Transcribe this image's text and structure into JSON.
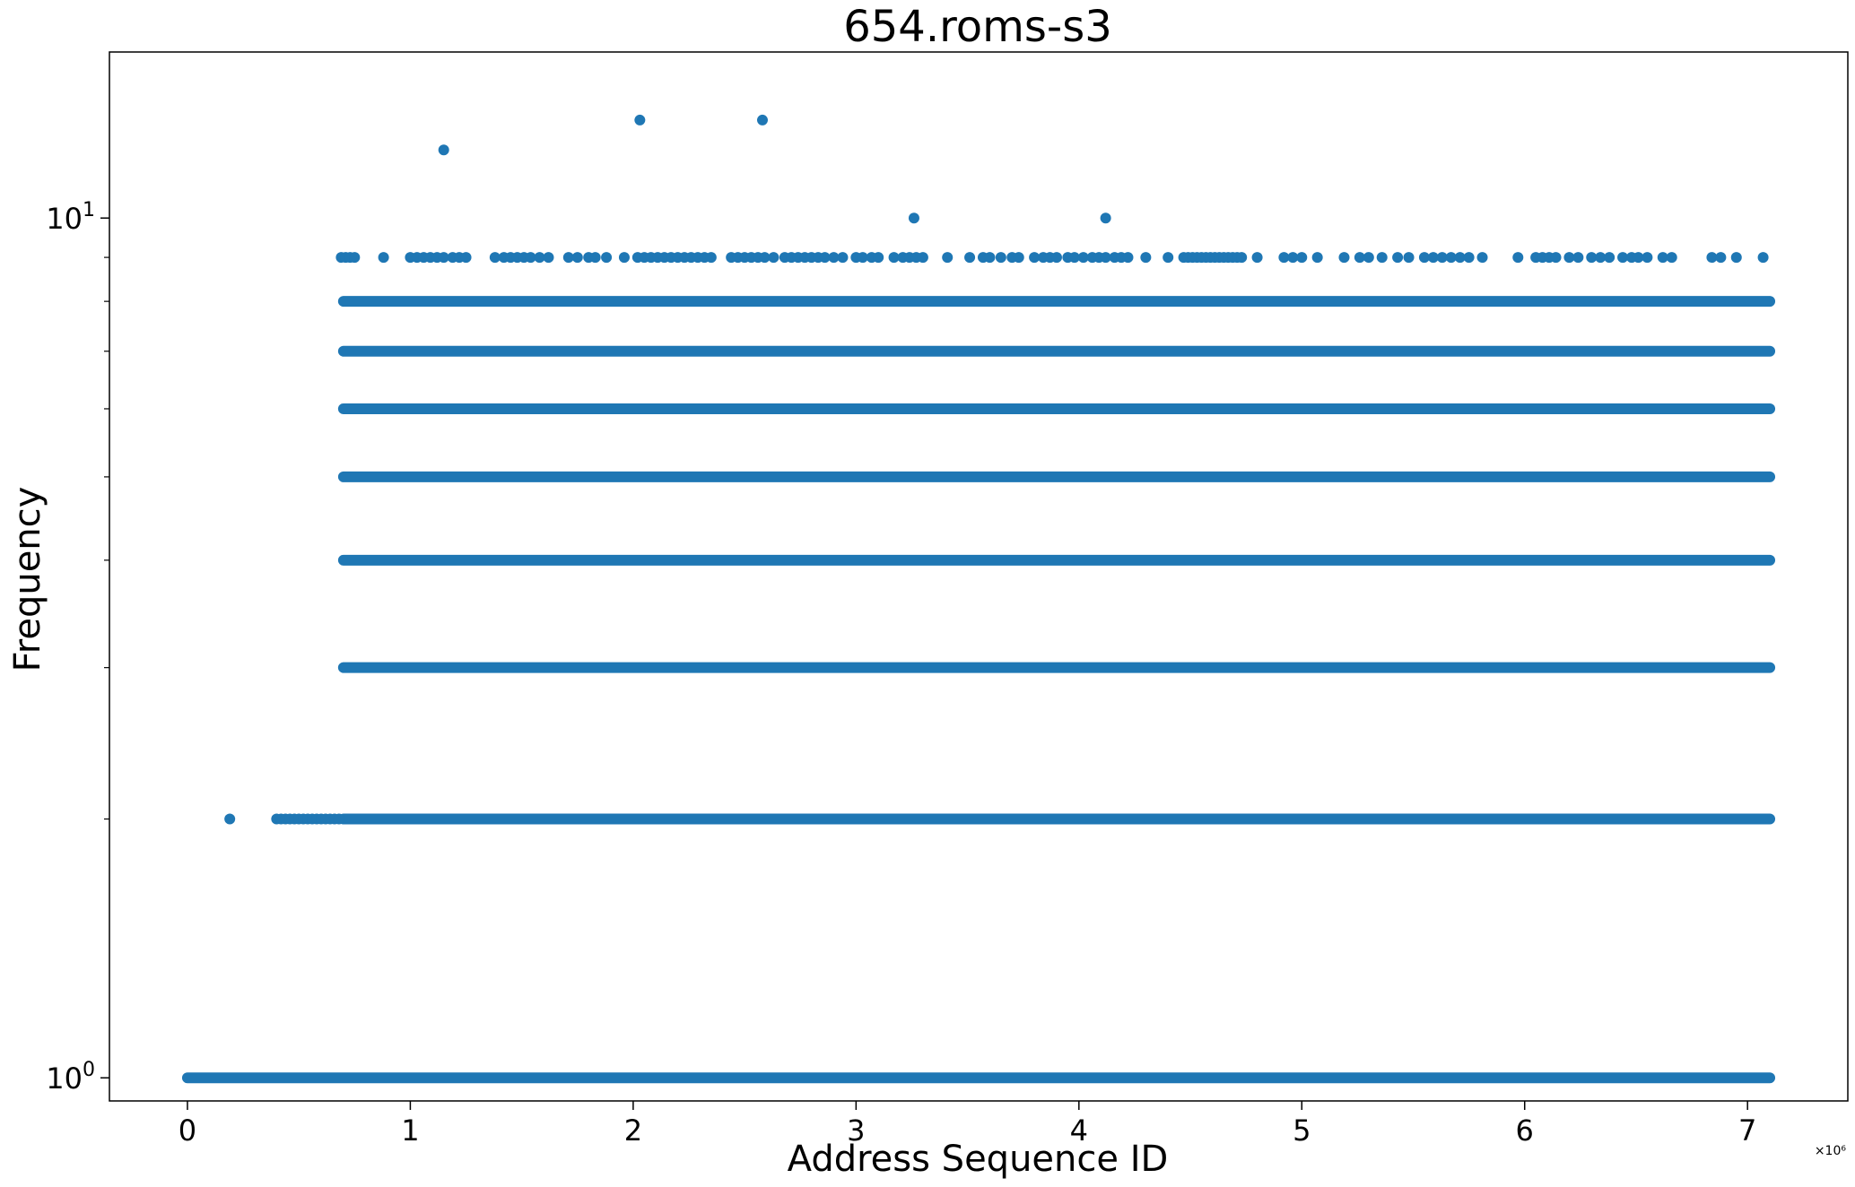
{
  "chart_data": {
    "type": "scatter",
    "title": "654.roms-s3",
    "xlabel": "Address Sequence ID",
    "ylabel": "Frequency",
    "x_scale_multiplier_label": "×10⁶",
    "x_ticks": [
      {
        "value": 0,
        "label": "0"
      },
      {
        "value": 1,
        "label": "1"
      },
      {
        "value": 2,
        "label": "2"
      },
      {
        "value": 3,
        "label": "3"
      },
      {
        "value": 4,
        "label": "4"
      },
      {
        "value": 5,
        "label": "5"
      },
      {
        "value": 6,
        "label": "6"
      },
      {
        "value": 7,
        "label": "7"
      }
    ],
    "y_ticks_major": [
      {
        "value": 1,
        "base": "10",
        "exp": "0"
      },
      {
        "value": 10,
        "base": "10",
        "exp": "1"
      }
    ],
    "y_ticks_minor": [
      2,
      3,
      4,
      5,
      6,
      7,
      8,
      9
    ],
    "xlim": [
      -0.35,
      7.45
    ],
    "ylim": [
      0.94,
      15.6
    ],
    "y_scale": "log",
    "x_units": "millions",
    "grid": false,
    "color": "#1f77b4",
    "bands": [
      {
        "y": 1,
        "x_start": 0.0,
        "x_end": 7.1
      },
      {
        "y": 2,
        "x_start": 0.7,
        "x_end": 7.1
      },
      {
        "y": 3,
        "x_start": 0.7,
        "x_end": 7.1
      },
      {
        "y": 4,
        "x_start": 0.7,
        "x_end": 7.1
      },
      {
        "y": 5,
        "x_start": 0.7,
        "x_end": 7.1
      },
      {
        "y": 6,
        "x_start": 0.7,
        "x_end": 7.1
      },
      {
        "y": 7,
        "x_start": 0.7,
        "x_end": 7.1
      },
      {
        "y": 8,
        "x_start": 0.7,
        "x_end": 7.1
      }
    ],
    "points_y2_early": [
      0.19,
      0.4,
      0.42,
      0.44,
      0.46,
      0.48,
      0.5,
      0.52,
      0.54,
      0.56,
      0.58,
      0.6,
      0.62,
      0.64,
      0.66,
      0.68
    ],
    "points_y9": [
      0.69,
      0.71,
      0.73,
      0.75,
      0.88,
      1.0,
      1.03,
      1.06,
      1.09,
      1.12,
      1.15,
      1.19,
      1.22,
      1.25,
      1.38,
      1.42,
      1.45,
      1.48,
      1.51,
      1.54,
      1.58,
      1.62,
      1.71,
      1.75,
      1.8,
      1.83,
      1.88,
      1.96,
      2.02,
      2.05,
      2.08,
      2.11,
      2.14,
      2.17,
      2.2,
      2.23,
      2.26,
      2.29,
      2.32,
      2.35,
      2.44,
      2.47,
      2.5,
      2.53,
      2.56,
      2.59,
      2.63,
      2.68,
      2.71,
      2.74,
      2.77,
      2.8,
      2.83,
      2.86,
      2.9,
      2.94,
      3.0,
      3.03,
      3.07,
      3.1,
      3.17,
      3.21,
      3.24,
      3.27,
      3.3,
      3.41,
      3.51,
      3.57,
      3.6,
      3.65,
      3.7,
      3.73,
      3.8,
      3.84,
      3.87,
      3.9,
      3.95,
      3.98,
      4.02,
      4.06,
      4.09,
      4.12,
      4.16,
      4.19,
      4.22,
      4.3,
      4.4,
      4.47,
      4.49,
      4.51,
      4.53,
      4.55,
      4.57,
      4.59,
      4.61,
      4.63,
      4.65,
      4.67,
      4.69,
      4.71,
      4.73,
      4.8,
      4.92,
      4.96,
      5.0,
      5.07,
      5.19,
      5.26,
      5.3,
      5.36,
      5.43,
      5.48,
      5.55,
      5.59,
      5.63,
      5.67,
      5.71,
      5.75,
      5.81,
      5.97,
      6.05,
      6.08,
      6.11,
      6.14,
      6.2,
      6.24,
      6.3,
      6.34,
      6.38,
      6.44,
      6.48,
      6.51,
      6.55,
      6.62,
      6.66,
      6.84,
      6.88,
      6.95,
      7.07
    ],
    "points_y10": [
      3.26,
      4.12
    ],
    "points_y12": [
      1.15
    ],
    "points_y13": [
      2.03,
      2.58
    ]
  }
}
